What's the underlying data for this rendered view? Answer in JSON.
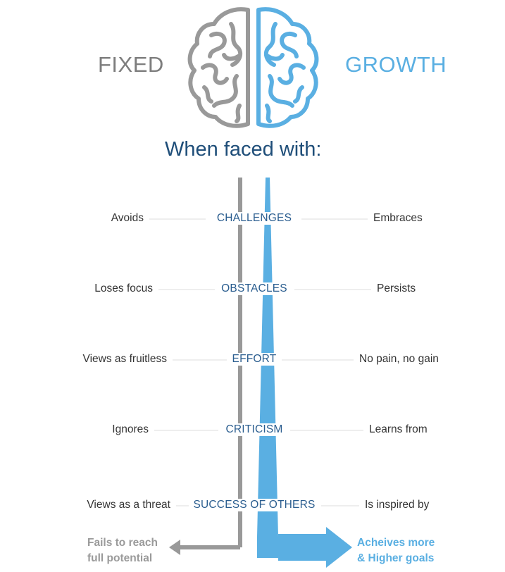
{
  "colors": {
    "fixed": "#999999",
    "growth": "#5aafe2",
    "heading": "#1f4e79",
    "label": "#2a5d8f",
    "text": "#333333",
    "connector": "#dddddd"
  },
  "header": {
    "fixed_label": "FIXED",
    "growth_label": "GROWTH",
    "icon": "brain-icon",
    "prompt": "When faced with:"
  },
  "rows": [
    {
      "situation": "CHALLENGES",
      "fixed": "Avoids",
      "growth": "Embraces"
    },
    {
      "situation": "OBSTACLES",
      "fixed": "Loses focus",
      "growth": "Persists"
    },
    {
      "situation": "EFFORT",
      "fixed": "Views as fruitless",
      "growth": "No pain, no gain"
    },
    {
      "situation": "CRITICISM",
      "fixed": "Ignores",
      "growth": "Learns from"
    },
    {
      "situation": "SUCCESS OF OTHERS",
      "fixed": "Views as a threat",
      "growth": "Is inspired by"
    }
  ],
  "outcomes": {
    "fixed": [
      "Fails to reach",
      "full potential"
    ],
    "growth": [
      "Acheives more",
      "& Higher goals"
    ]
  }
}
